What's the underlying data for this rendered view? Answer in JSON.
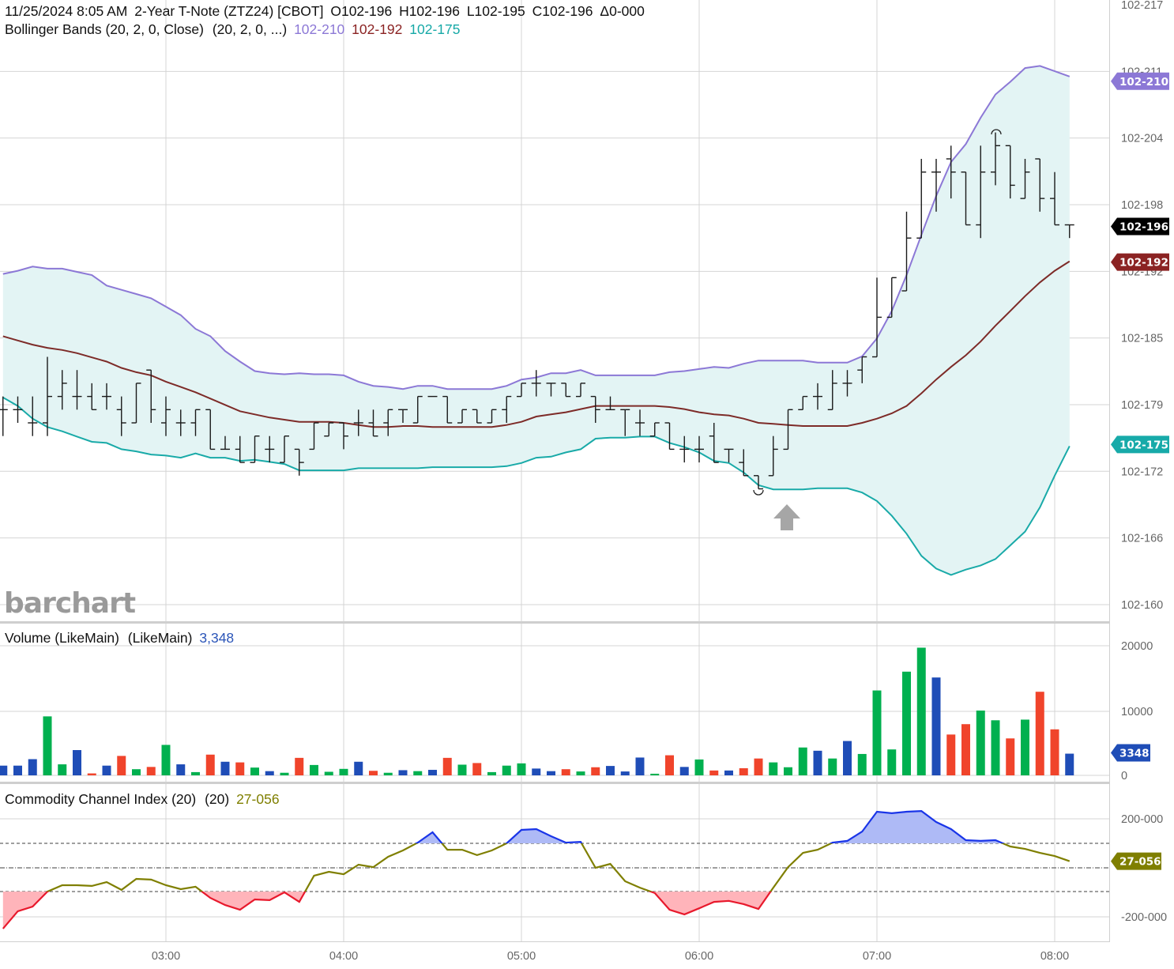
{
  "header": {
    "date_time": "11/25/2024 8:05 AM",
    "instrument": "2-Year T-Note (ZTZ24) [CBOT]",
    "open": "O102-196",
    "high": "H102-196",
    "low": "L102-195",
    "close": "C102-196",
    "change": "Δ0-000"
  },
  "bollinger": {
    "label": "Bollinger Bands (20, 2, 0, Close)",
    "params": "(20, 2, 0, ...)",
    "upper_value": "102-210",
    "middle_value": "102-192",
    "lower_value": "102-175",
    "last_price": "102-196"
  },
  "volume": {
    "label": "Volume (LikeMain)",
    "params": "(LikeMain)",
    "value": "3,348",
    "marker": "3348"
  },
  "cci": {
    "label": "Commodity Channel Index (20)",
    "params": "(20)",
    "value": "27-056"
  },
  "watermark": "barchart",
  "colors": {
    "upper_band": "#8c78d6",
    "middle_band": "#7d2b28",
    "lower_band": "#19aaa8",
    "band_fill": "#e3f4f4",
    "bar": "#1a1a1a",
    "volume_up": "#00b04f",
    "volume_down": "#f0442b",
    "volume_neutral": "#1f4db7",
    "cci_line": "#7f7f00",
    "cci_overbought": "#1a35e8",
    "cci_overbought_fill": "#aebaf6",
    "cci_oversold": "#e8192c",
    "cci_oversold_fill": "#ffb4ba",
    "last_price_marker": "#000000",
    "middle_marker": "#8b2323",
    "volume_marker": "#1f4db7",
    "cci_marker": "#7f7f00"
  },
  "price_axis": {
    "ticks": [
      "102-217",
      "102-211",
      "102-204",
      "102-198",
      "102-192",
      "102-185",
      "102-179",
      "102-172",
      "102-166",
      "102-160"
    ]
  },
  "volume_axis": {
    "ticks": [
      "20000",
      "10000",
      "0"
    ]
  },
  "cci_axis": {
    "ticks": [
      "200-000",
      "-200-000"
    ]
  },
  "time_axis": {
    "ticks": [
      "03:00",
      "04:00",
      "05:00",
      "06:00",
      "07:00",
      "08:00"
    ]
  },
  "chart_data": [
    {
      "type": "ohlc",
      "price_unit_note_printed": "",
      "x": [
        "02:05",
        "02:10",
        "02:15",
        "02:20",
        "02:25",
        "02:30",
        "02:35",
        "02:40",
        "02:45",
        "02:50",
        "02:55",
        "03:00",
        "03:05",
        "03:10",
        "03:15",
        "03:20",
        "03:25",
        "03:30",
        "03:35",
        "03:40",
        "03:45",
        "03:50",
        "03:55",
        "04:00",
        "04:05",
        "04:10",
        "04:15",
        "04:20",
        "04:25",
        "04:30",
        "04:35",
        "04:40",
        "04:45",
        "04:50",
        "04:55",
        "05:00",
        "05:05",
        "05:10",
        "05:15",
        "05:20",
        "05:25",
        "05:30",
        "05:35",
        "05:40",
        "05:45",
        "05:50",
        "05:55",
        "06:00",
        "06:05",
        "06:10",
        "06:15",
        "06:20",
        "06:25",
        "06:30",
        "06:35",
        "06:40",
        "06:45",
        "06:50",
        "06:55",
        "07:00",
        "07:05",
        "07:10",
        "07:15",
        "07:20",
        "07:25",
        "07:30",
        "07:35",
        "07:40",
        "07:45",
        "07:50",
        "07:55",
        "08:00",
        "08:05"
      ],
      "ohlc_32nds": [
        [
          17.875,
          18,
          17.625,
          17.875
        ],
        [
          17.875,
          18,
          17.75,
          17.875
        ],
        [
          17.75,
          18,
          17.625,
          17.75
        ],
        [
          17.75,
          18.375,
          17.625,
          18
        ],
        [
          18,
          18.25,
          17.875,
          18.125
        ],
        [
          18,
          18.25,
          17.875,
          18
        ],
        [
          18,
          18.125,
          17.875,
          17.875
        ],
        [
          18,
          18.125,
          17.875,
          18
        ],
        [
          17.875,
          18,
          17.625,
          17.75
        ],
        [
          17.75,
          18.125,
          17.75,
          18.125
        ],
        [
          18.25,
          18.25,
          17.75,
          17.875
        ],
        [
          17.75,
          18,
          17.625,
          17.875
        ],
        [
          17.75,
          17.875,
          17.625,
          17.75
        ],
        [
          17.75,
          17.875,
          17.625,
          17.875
        ],
        [
          17.875,
          17.875,
          17.5,
          17.5
        ],
        [
          17.5,
          17.625,
          17.5,
          17.5
        ],
        [
          17.5,
          17.625,
          17.375,
          17.375
        ],
        [
          17.375,
          17.625,
          17.375,
          17.625
        ],
        [
          17.5,
          17.625,
          17.375,
          17.5
        ],
        [
          17.375,
          17.625,
          17.375,
          17.625
        ],
        [
          17.5,
          17.5,
          17.25,
          17.375
        ],
        [
          17.5,
          17.75,
          17.5,
          17.75
        ],
        [
          17.625,
          17.75,
          17.625,
          17.75
        ],
        [
          17.75,
          17.75,
          17.5,
          17.625
        ],
        [
          17.75,
          17.875,
          17.625,
          17.75
        ],
        [
          17.75,
          17.875,
          17.625,
          17.625
        ],
        [
          17.75,
          17.875,
          17.625,
          17.875
        ],
        [
          17.875,
          17.875,
          17.75,
          17.875
        ],
        [
          17.75,
          18,
          17.75,
          18
        ],
        [
          18,
          18,
          18,
          18
        ],
        [
          18,
          18,
          17.75,
          17.75
        ],
        [
          17.75,
          17.875,
          17.75,
          17.875
        ],
        [
          17.875,
          17.875,
          17.75,
          17.75
        ],
        [
          17.75,
          17.875,
          17.75,
          17.875
        ],
        [
          17.875,
          18,
          17.75,
          18
        ],
        [
          18,
          18.125,
          18,
          18.125
        ],
        [
          18.125,
          18.25,
          18,
          18.125
        ],
        [
          18.125,
          18.125,
          18,
          18.125
        ],
        [
          18.125,
          18.125,
          18,
          18
        ],
        [
          18,
          18.125,
          18,
          18.125
        ],
        [
          18,
          18,
          17.75,
          17.875
        ],
        [
          17.875,
          18,
          17.875,
          17.875
        ],
        [
          17.875,
          17.875,
          17.625,
          17.875
        ],
        [
          17.75,
          17.875,
          17.625,
          17.75
        ],
        [
          17.625,
          17.75,
          17.625,
          17.75
        ],
        [
          17.75,
          17.75,
          17.5,
          17.5
        ],
        [
          17.5,
          17.625,
          17.375,
          17.5
        ],
        [
          17.5,
          17.625,
          17.375,
          17.5
        ],
        [
          17.625,
          17.75,
          17.375,
          17.375
        ],
        [
          17.5,
          17.5,
          17.375,
          17.5
        ],
        [
          17.375,
          17.5,
          17.25,
          17.25
        ],
        [
          17.25,
          17.25,
          17.125,
          17.125
        ],
        [
          17.25,
          17.625,
          17.25,
          17.5
        ],
        [
          17.5,
          17.875,
          17.5,
          17.875
        ],
        [
          17.875,
          18,
          17.875,
          18
        ],
        [
          18,
          18.125,
          17.875,
          18
        ],
        [
          17.875,
          18.25,
          17.875,
          18.125
        ],
        [
          18.125,
          18.25,
          18,
          18.125
        ],
        [
          18.25,
          18.375,
          18.125,
          18.375
        ],
        [
          18.375,
          19.125,
          18.375,
          18.75
        ],
        [
          18.75,
          19.125,
          18.75,
          19.125
        ],
        [
          19,
          19.75,
          19,
          19.5
        ],
        [
          19.5,
          20.25,
          19.5,
          20.125
        ],
        [
          20.125,
          20.25,
          19.75,
          20.125
        ],
        [
          20.25,
          20.375,
          19.875,
          20.125
        ],
        [
          20.125,
          20.125,
          19.625,
          19.625
        ],
        [
          19.625,
          20.375,
          19.5,
          20.125
        ],
        [
          20.125,
          20.5,
          20,
          20.375
        ],
        [
          20.375,
          20.375,
          19.875,
          20
        ],
        [
          19.875,
          20.25,
          19.875,
          20.125
        ],
        [
          20.25,
          20.25,
          19.75,
          19.875
        ],
        [
          19.875,
          20.125,
          19.625,
          19.625
        ],
        [
          19.625,
          19.625,
          19.5,
          19.625
        ]
      ],
      "bollinger_upper_32nds": [
        19.16,
        19.19,
        19.23,
        19.21,
        19.21,
        19.18,
        19.15,
        19.05,
        19.01,
        18.97,
        18.93,
        18.85,
        18.77,
        18.64,
        18.57,
        18.43,
        18.33,
        18.24,
        18.22,
        18.21,
        18.22,
        18.21,
        18.21,
        18.2,
        18.14,
        18.1,
        18.09,
        18.07,
        18.1,
        18.1,
        18.07,
        18.07,
        18.07,
        18.07,
        18.1,
        18.16,
        18.18,
        18.22,
        18.22,
        18.25,
        18.2,
        18.2,
        18.2,
        18.2,
        18.2,
        18.23,
        18.24,
        18.26,
        18.28,
        18.27,
        18.31,
        18.34,
        18.34,
        18.34,
        18.34,
        18.32,
        18.32,
        18.32,
        18.38,
        18.55,
        18.81,
        19.15,
        19.53,
        19.9,
        20.22,
        20.39,
        20.64,
        20.86,
        20.98,
        21.11,
        21.13,
        21.08,
        21.03
      ],
      "bollinger_middle_32nds": [
        18.57,
        18.53,
        18.49,
        18.46,
        18.44,
        18.41,
        18.37,
        18.33,
        18.27,
        18.23,
        18.2,
        18.14,
        18.09,
        18.04,
        17.98,
        17.92,
        17.86,
        17.83,
        17.8,
        17.78,
        17.76,
        17.76,
        17.76,
        17.75,
        17.73,
        17.71,
        17.71,
        17.72,
        17.72,
        17.71,
        17.71,
        17.71,
        17.71,
        17.71,
        17.73,
        17.76,
        17.81,
        17.83,
        17.85,
        17.88,
        17.91,
        17.91,
        17.91,
        17.91,
        17.91,
        17.9,
        17.88,
        17.85,
        17.83,
        17.82,
        17.79,
        17.75,
        17.74,
        17.73,
        17.72,
        17.72,
        17.72,
        17.72,
        17.75,
        17.79,
        17.84,
        17.91,
        18.03,
        18.16,
        18.28,
        18.39,
        18.52,
        18.67,
        18.81,
        18.95,
        19.08,
        19.19,
        19.28
      ],
      "bollinger_lower_32nds": [
        17.99,
        17.91,
        17.79,
        17.71,
        17.67,
        17.62,
        17.57,
        17.56,
        17.5,
        17.48,
        17.45,
        17.44,
        17.42,
        17.46,
        17.42,
        17.42,
        17.39,
        17.4,
        17.38,
        17.36,
        17.3,
        17.3,
        17.3,
        17.3,
        17.32,
        17.32,
        17.32,
        17.32,
        17.32,
        17.33,
        17.33,
        17.33,
        17.33,
        17.33,
        17.34,
        17.37,
        17.42,
        17.43,
        17.47,
        17.5,
        17.6,
        17.61,
        17.61,
        17.62,
        17.62,
        17.56,
        17.52,
        17.47,
        17.39,
        17.37,
        17.28,
        17.16,
        17.12,
        17.12,
        17.12,
        17.13,
        17.13,
        17.13,
        17.09,
        17.01,
        16.87,
        16.7,
        16.49,
        16.37,
        16.31,
        16.36,
        16.4,
        16.46,
        16.59,
        16.72,
        16.95,
        17.25,
        17.53
      ]
    },
    {
      "type": "bar",
      "name": "Volume (LikeMain)",
      "values": [
        1500,
        1500,
        2500,
        9100,
        1700,
        3900,
        300,
        1500,
        3000,
        950,
        1300,
        4700,
        1700,
        500,
        3200,
        2100,
        2000,
        1200,
        650,
        400,
        2700,
        1600,
        550,
        1000,
        2100,
        700,
        400,
        800,
        650,
        850,
        2700,
        1650,
        1900,
        500,
        1500,
        1850,
        1050,
        650,
        950,
        600,
        1250,
        1450,
        600,
        2750,
        250,
        3100,
        1300,
        2450,
        750,
        750,
        1100,
        2600,
        2000,
        1250,
        4300,
        3800,
        2600,
        5300,
        3300,
        13100,
        4000,
        16000,
        19700,
        15100,
        6300,
        7900,
        10000,
        8500,
        5700,
        8600,
        12900,
        7100,
        3348
      ],
      "colors": [
        "b",
        "b",
        "b",
        "g",
        "g",
        "b",
        "r",
        "b",
        "r",
        "g",
        "r",
        "g",
        "b",
        "g",
        "r",
        "b",
        "r",
        "g",
        "b",
        "g",
        "r",
        "g",
        "g",
        "g",
        "b",
        "r",
        "g",
        "b",
        "g",
        "b",
        "r",
        "g",
        "r",
        "g",
        "g",
        "g",
        "b",
        "b",
        "r",
        "g",
        "r",
        "b",
        "b",
        "b",
        "g",
        "r",
        "b",
        "g",
        "r",
        "b",
        "r",
        "r",
        "g",
        "g",
        "g",
        "b",
        "g",
        "b",
        "g",
        "g",
        "g",
        "g",
        "g",
        "b",
        "r",
        "r",
        "g",
        "g",
        "r",
        "g",
        "r",
        "r",
        "b"
      ],
      "ylim": [
        0,
        20000
      ]
    },
    {
      "type": "line",
      "name": "Commodity Channel Index (20)",
      "values": [
        -248,
        -177,
        -158,
        -97,
        -71,
        -71,
        -74,
        -58,
        -90,
        -45,
        -48,
        -71,
        -87,
        -77,
        -123,
        -152,
        -171,
        -129,
        -132,
        -100,
        -139,
        -32,
        -16,
        -26,
        13,
        3,
        45,
        71,
        103,
        145,
        74,
        74,
        52,
        71,
        100,
        155,
        158,
        129,
        103,
        106,
        0,
        16,
        -55,
        -81,
        -103,
        -171,
        -190,
        -165,
        -139,
        -135,
        -148,
        -168,
        -81,
        3,
        61,
        74,
        103,
        110,
        148,
        229,
        223,
        229,
        232,
        187,
        158,
        113,
        110,
        113,
        87,
        77,
        61,
        48,
        27.056
      ],
      "overbought": 100,
      "oversold": -100
    }
  ]
}
